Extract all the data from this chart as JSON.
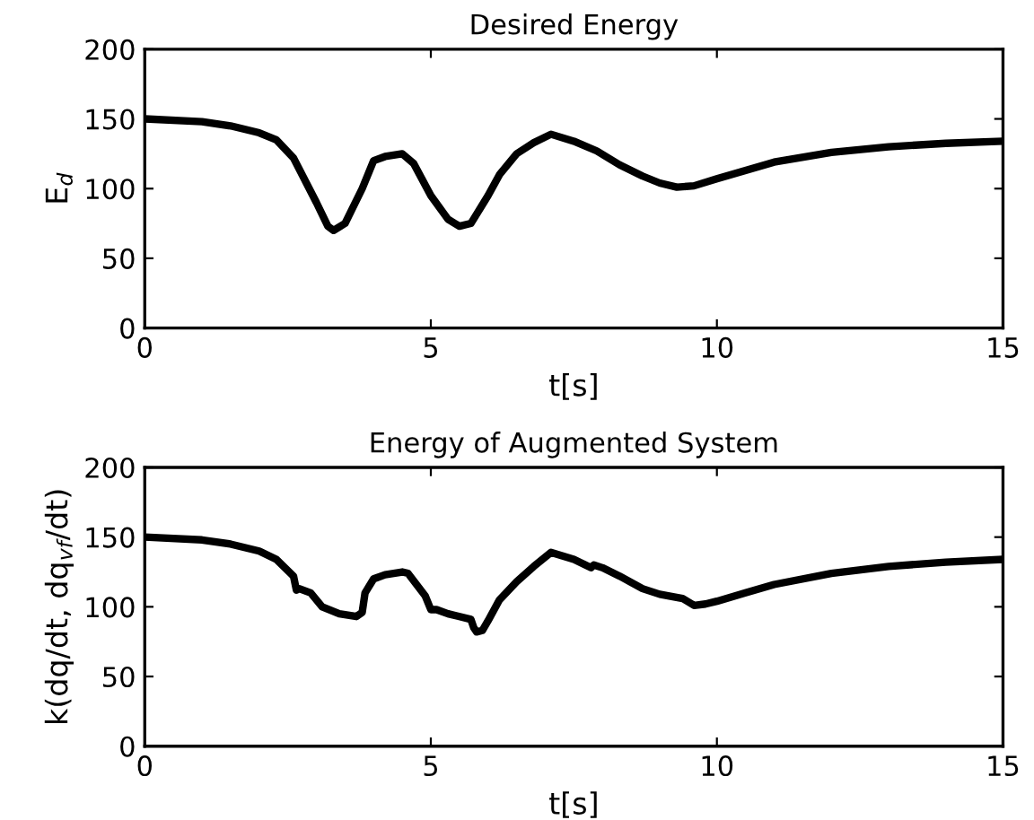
{
  "chart_data": [
    {
      "type": "line",
      "title": "Desired Energy",
      "xlabel": "t[s]",
      "ylabel": "E$_{d}$",
      "xlim": [
        0,
        15
      ],
      "ylim": [
        0,
        200
      ],
      "xticks": [
        0,
        5,
        10,
        15
      ],
      "yticks": [
        0,
        50,
        100,
        150,
        200
      ],
      "grid": false,
      "line_style": "solid",
      "series": [
        {
          "color": "#000000",
          "x": [
            0,
            1,
            1.5,
            2,
            2.3,
            2.6,
            3.0,
            3.2,
            3.3,
            3.5,
            3.8,
            4.0,
            4.2,
            4.5,
            4.7,
            5.0,
            5.3,
            5.5,
            5.7,
            6.0,
            6.2,
            6.5,
            6.8,
            7.1,
            7.5,
            7.9,
            8.3,
            8.7,
            9.0,
            9.3,
            9.6,
            10,
            10.5,
            11,
            12,
            13,
            14,
            15
          ],
          "values": [
            150,
            148,
            145,
            140,
            135,
            122,
            90,
            73,
            70,
            75,
            100,
            120,
            123,
            125,
            118,
            95,
            78,
            73,
            75,
            95,
            110,
            125,
            133,
            139,
            134,
            127,
            117,
            109,
            104,
            101,
            102,
            107,
            113,
            119,
            126,
            130,
            132.5,
            134
          ]
        }
      ]
    },
    {
      "type": "line",
      "title": "Energy of Augmented System",
      "xlabel": "t[s]",
      "ylabel": "k(dq/dt, dq$_{vf}$/dt)",
      "xlim": [
        0,
        15
      ],
      "ylim": [
        0,
        200
      ],
      "xticks": [
        0,
        5,
        10,
        15
      ],
      "yticks": [
        0,
        50,
        100,
        150,
        200
      ],
      "grid": false,
      "line_style": "solid",
      "series": [
        {
          "color": "#000000",
          "x": [
            0,
            1,
            1.5,
            2,
            2.3,
            2.6,
            2.65,
            2.7,
            2.9,
            3.1,
            3.4,
            3.7,
            3.8,
            3.85,
            4.0,
            4.2,
            4.5,
            4.6,
            4.9,
            5.0,
            5.1,
            5.3,
            5.7,
            5.75,
            5.8,
            5.9,
            6.0,
            6.2,
            6.5,
            6.8,
            7.1,
            7.5,
            7.8,
            7.85,
            8.0,
            8.3,
            8.7,
            9.0,
            9.4,
            9.6,
            9.8,
            10,
            10.5,
            11,
            12,
            13,
            14,
            15
          ],
          "values": [
            150,
            148,
            145,
            140,
            134,
            122,
            112,
            113,
            110,
            100,
            95,
            93,
            96,
            110,
            120,
            123,
            125,
            124,
            108,
            98,
            98,
            95,
            91,
            85,
            82,
            83,
            90,
            105,
            118,
            129,
            139,
            134,
            128,
            130,
            128,
            122,
            113,
            109,
            106,
            101,
            102,
            104,
            110,
            116,
            124,
            129,
            132,
            134
          ]
        }
      ]
    }
  ]
}
